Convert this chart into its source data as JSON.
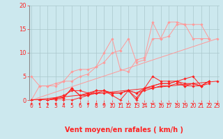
{
  "background_color": "#cce8ee",
  "grid_color": "#aac8cc",
  "line_color_light": "#ff9999",
  "line_color_dark": "#ff2222",
  "xlabel": "Vent moyen/en rafales ( km/h )",
  "yticks": [
    0,
    5,
    10,
    15,
    20
  ],
  "xticks": [
    0,
    1,
    2,
    3,
    4,
    5,
    6,
    7,
    8,
    9,
    10,
    11,
    12,
    13,
    14,
    15,
    16,
    17,
    18,
    19,
    20,
    21,
    22,
    23
  ],
  "xlim": [
    -0.3,
    23.3
  ],
  "ylim": [
    0,
    20
  ],
  "series_light": [
    [
      0,
      0,
      1,
      3,
      2,
      3,
      3,
      3,
      4,
      4,
      5,
      6,
      6,
      6.5,
      7,
      6.5,
      8,
      7,
      9,
      10,
      10,
      13,
      11,
      6.5,
      12,
      6,
      13,
      8.5,
      14,
      9,
      15,
      16.5,
      16,
      13,
      17,
      16.5,
      18,
      16.5,
      19,
      16,
      20,
      13,
      21,
      13,
      22,
      13
    ],
    [
      0,
      5,
      1,
      3,
      2,
      3,
      3,
      3.5,
      4,
      4,
      5,
      4,
      6,
      5,
      7,
      5.5,
      8,
      7,
      9,
      8,
      10,
      10,
      11,
      10.5,
      12,
      13,
      13,
      8,
      14,
      8.5,
      15,
      13,
      16,
      13,
      17,
      13.5,
      18,
      16,
      19,
      16,
      20,
      16,
      21,
      16,
      22,
      13
    ],
    [
      0,
      0,
      23,
      13
    ]
  ],
  "series_dark": [
    [
      0,
      0,
      1,
      0,
      2,
      0,
      3,
      0.5,
      4,
      1,
      5,
      2,
      6,
      2,
      7,
      1.5,
      8,
      1.5,
      9,
      2,
      10,
      1,
      11,
      0,
      12,
      2,
      13,
      1.5,
      14,
      2.5,
      15,
      5,
      16,
      4,
      17,
      4,
      18,
      4,
      19,
      4.5,
      20,
      5,
      21,
      3,
      22,
      4
    ],
    [
      0,
      0,
      1,
      0,
      2,
      0,
      3,
      0.3,
      4,
      0.5,
      5,
      2.5,
      6,
      1,
      7,
      1,
      8,
      2,
      9,
      2,
      10,
      1.5,
      11,
      1.5,
      12,
      2,
      13,
      0,
      14,
      2.5,
      15,
      3,
      16,
      3.5,
      17,
      3.5,
      18,
      4,
      19,
      3,
      20,
      3.5,
      21,
      3,
      22,
      4
    ],
    [
      0,
      0,
      1,
      0,
      2,
      0,
      3,
      0.3,
      4,
      0.5,
      5,
      2.5,
      6,
      1,
      7,
      1.5,
      8,
      2,
      9,
      2,
      10,
      1.5,
      11,
      1.5,
      12,
      2,
      13,
      0.5,
      14,
      2.5,
      15,
      3,
      16,
      3.5,
      17,
      3.5,
      18,
      4,
      19,
      3.5,
      20,
      3.5,
      21,
      3,
      22,
      4
    ],
    [
      0,
      0,
      1,
      0,
      2,
      0,
      3,
      0,
      4,
      0,
      5,
      0,
      6,
      0.5,
      7,
      1,
      8,
      1.5,
      9,
      1.5,
      10,
      1.5,
      11,
      1.5,
      12,
      2,
      13,
      1.5,
      14,
      2,
      15,
      2.5,
      16,
      3,
      17,
      3,
      18,
      3.5,
      19,
      3,
      20,
      3,
      21,
      3,
      22,
      3.5
    ],
    [
      0,
      0,
      23,
      4
    ]
  ],
  "wind_directions": [
    180,
    180,
    180,
    185,
    190,
    195,
    200,
    205,
    210,
    215,
    220,
    225,
    230,
    235,
    250,
    265,
    270,
    275,
    285,
    295,
    305,
    315,
    330,
    345
  ],
  "tick_fontsize": 5.5,
  "xlabel_fontsize": 7,
  "ytick_fontsize": 6
}
